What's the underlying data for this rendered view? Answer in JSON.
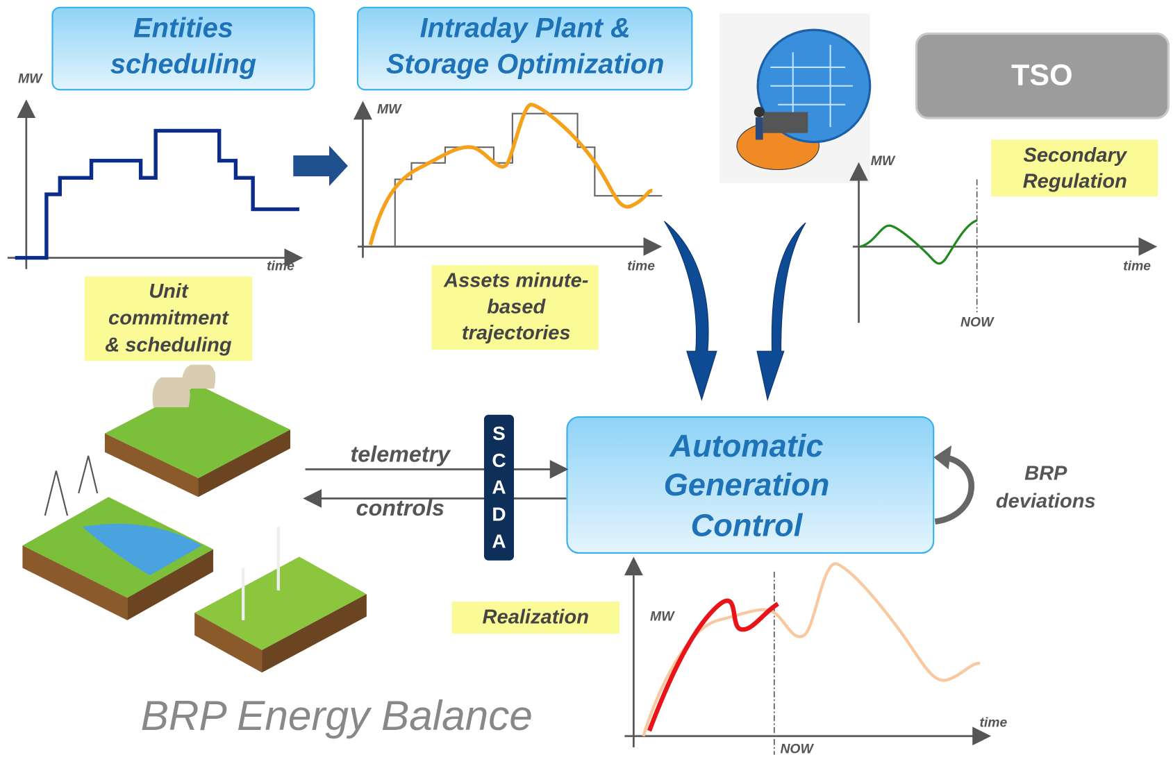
{
  "boxes": {
    "entities": [
      "Entities",
      "scheduling"
    ],
    "intraday": [
      "Intraday Plant &",
      "Storage Optimization"
    ],
    "tso": "TSO",
    "agc": [
      "Automatic",
      "Generation",
      "Control"
    ]
  },
  "notes": {
    "unit": [
      "Unit",
      "commitment",
      "& scheduling"
    ],
    "assets": [
      "Assets minute-",
      "based",
      "trajectories"
    ],
    "secondary": [
      "Secondary",
      "Regulation"
    ],
    "realization": "Realization",
    "brp_deviations": [
      "BRP",
      "deviations"
    ]
  },
  "links": {
    "telemetry": "telemetry",
    "controls": "controls",
    "scada": [
      "S",
      "C",
      "A",
      "D",
      "A"
    ]
  },
  "charts": {
    "schedule": {
      "y_label": "MW",
      "x_label": "time"
    },
    "intraday": {
      "y_label": "MW",
      "x_label": "time"
    },
    "secondary": {
      "y_label": "MW",
      "x_label": "time",
      "marker": "NOW"
    },
    "realization": {
      "y_label": "MW",
      "x_label": "time",
      "marker": "NOW"
    }
  },
  "footer": "BRP Energy Balance"
}
